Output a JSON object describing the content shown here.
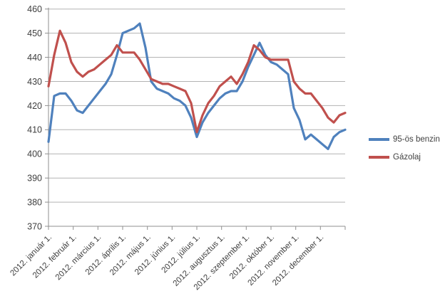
{
  "chart_data": {
    "type": "line",
    "title": "",
    "grid": true,
    "legend_position": "right",
    "x_axis": {
      "tick_labels": [
        "2012. január 1.",
        "2012. február 1.",
        "2012. március 1.",
        "2012. április 1.",
        "2012. május 1.",
        "2012. június 1.",
        "2012. július 1.",
        "2012. augusztus 1.",
        "2012. szeptember 1.",
        "2012. október 1.",
        "2012. november 1.",
        "2012. december 1."
      ]
    },
    "y_axis": {
      "min": 370,
      "max": 460,
      "ticks": [
        460,
        450,
        440,
        430,
        420,
        410,
        400,
        390,
        380,
        370
      ]
    },
    "series": [
      {
        "name": "95-ös benzin",
        "color": "#4F81BD",
        "values": [
          405,
          424,
          425,
          425,
          422,
          418,
          417,
          420,
          423,
          426,
          429,
          433,
          441,
          450,
          451,
          452,
          454,
          444,
          430,
          427,
          426,
          425,
          423,
          422,
          420,
          415,
          407,
          413,
          417,
          420,
          423,
          425,
          426,
          426,
          430,
          436,
          441,
          446,
          441,
          438,
          437,
          435,
          433,
          419,
          414,
          406,
          408,
          406,
          404,
          402,
          407,
          409,
          410
        ]
      },
      {
        "name": "Gázolaj",
        "color": "#C0504D",
        "values": [
          428,
          441,
          451,
          446,
          438,
          434,
          432,
          434,
          435,
          437,
          439,
          441,
          445,
          442,
          442,
          442,
          439,
          435,
          431,
          430,
          429,
          429,
          428,
          427,
          426,
          421,
          409,
          416,
          421,
          424,
          428,
          430,
          432,
          429,
          433,
          438,
          445,
          443,
          440,
          439,
          439,
          439,
          439,
          430,
          427,
          425,
          425,
          422,
          419,
          415,
          413,
          416,
          417
        ]
      }
    ],
    "colors": {
      "axis": "#8f8f8f",
      "gridline": "#b3b3b3",
      "label_text": "#3f3f3f"
    }
  }
}
